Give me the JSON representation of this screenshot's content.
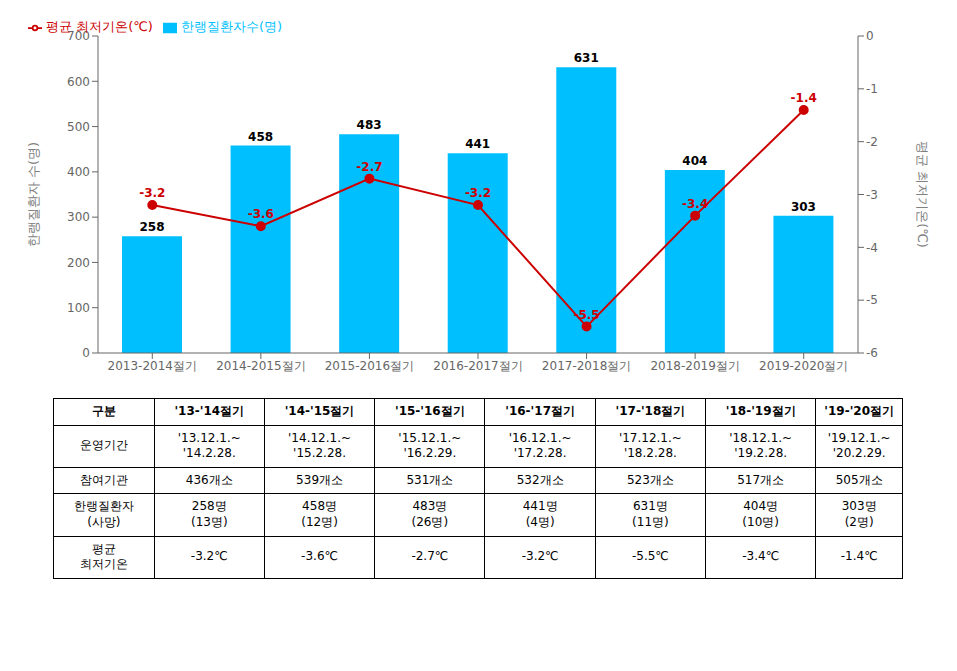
{
  "chart_data": {
    "type": "combo",
    "categories": [
      "2013-2014절기",
      "2014-2015절기",
      "2015-2016절기",
      "2016-2017절기",
      "2017-2018절기",
      "2018-2019절기",
      "2019-2020절기"
    ],
    "series": [
      {
        "name": "한랭질환자수(명)",
        "type": "bar",
        "color": "#00BFFF",
        "values": [
          258,
          458,
          483,
          441,
          631,
          404,
          303
        ],
        "data_labels": true
      },
      {
        "name": "평균 최저기온(℃)",
        "type": "line",
        "axis": "y2",
        "color": "#CC0000",
        "marker": "circle",
        "values": [
          -3.2,
          -3.6,
          -2.7,
          -3.2,
          -5.5,
          -3.4,
          -1.4
        ],
        "data_labels": true
      }
    ],
    "ylabel": "한랭질환자 수(명)",
    "y2label": "평균 최저기온(℃)",
    "ylim": [
      0,
      700
    ],
    "yticks": [
      0,
      100,
      200,
      300,
      400,
      500,
      600,
      700
    ],
    "y2lim": [
      -6,
      0
    ],
    "y2ticks": [
      0,
      -1,
      -2,
      -3,
      -4,
      -5,
      -6
    ],
    "legend": "upper left",
    "grid": false,
    "table": {
      "headers": [
        "구분",
        "'13-'14절기",
        "'14-'15절기",
        "'15-'16절기",
        "'16-'17절기",
        "'17-'18절기",
        "'18-'19절기",
        "'19-'20절기"
      ],
      "rows": [
        [
          "운영기간",
          "'13.12.1.~\n'14.2.28.",
          "'14.12.1.~\n'15.2.28.",
          "'15.12.1.~\n'16.2.29.",
          "'16.12.1.~\n'17.2.28.",
          "'17.12.1.~\n'18.2.28.",
          "'18.12.1.~\n'19.2.28.",
          "'19.12.1.~\n'20.2.29."
        ],
        [
          "참여기관",
          "436개소",
          "539개소",
          "531개소",
          "532개소",
          "523개소",
          "517개소",
          "505개소"
        ],
        [
          "한랭질환자\n(사망)",
          "258명\n(13명)",
          "458명\n(12명)",
          "483명\n(26명)",
          "441명\n(4명)",
          "631명\n(11명)",
          "404명\n(10명)",
          "303명\n(2명)"
        ],
        [
          "평균\n최저기온",
          "-3.2℃",
          "-3.6℃",
          "-2.7℃",
          "-3.2℃",
          "-5.5℃",
          "-3.4℃",
          "-1.4℃"
        ]
      ]
    }
  }
}
